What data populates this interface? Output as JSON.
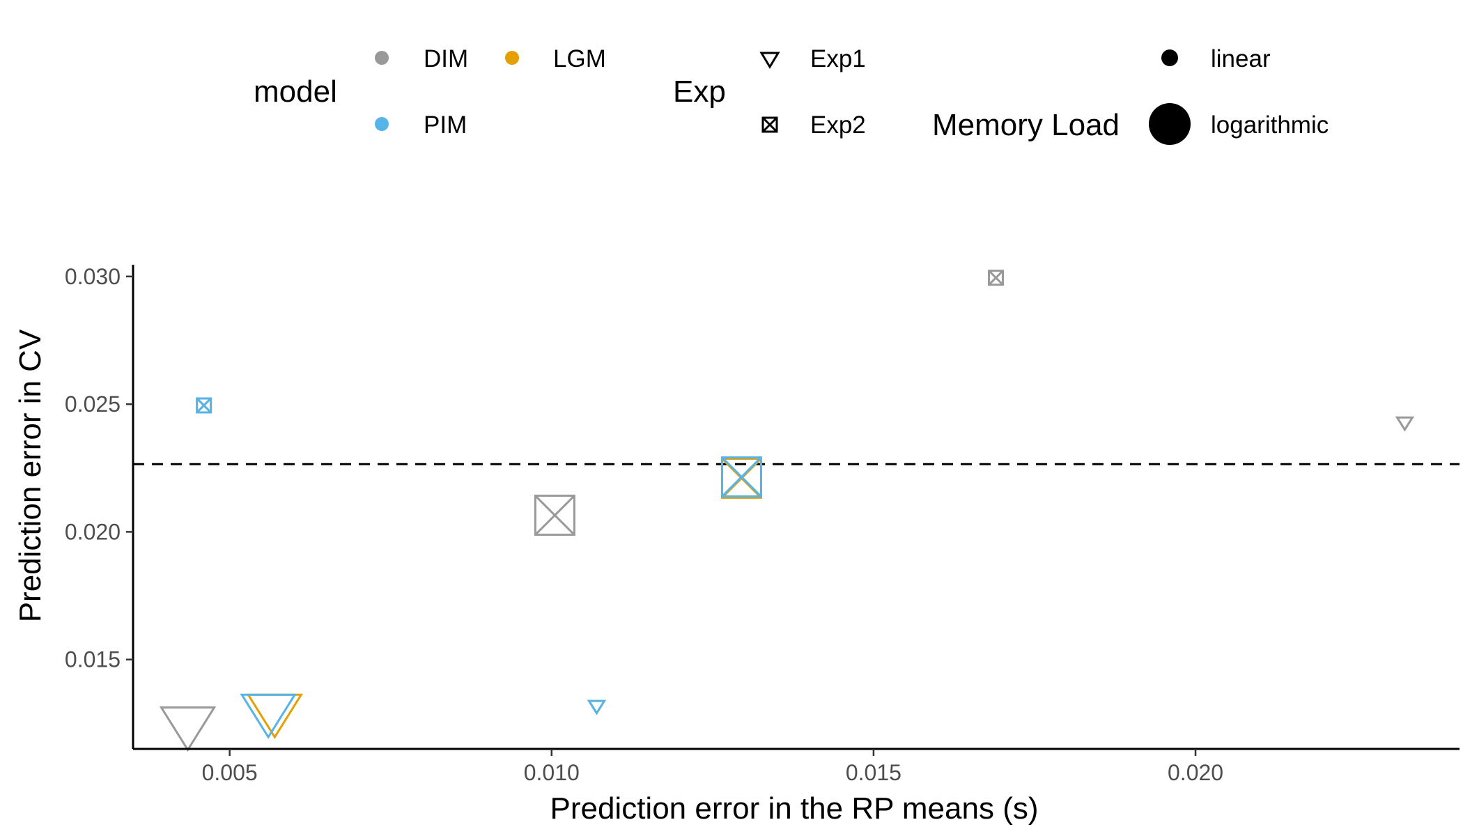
{
  "chart_data": {
    "type": "scatter",
    "title": "",
    "xlabel": "Prediction error in the RP means (s)",
    "ylabel": "Prediction error in CV",
    "xlim": [
      0.0035,
      0.0241
    ],
    "ylim": [
      0.0115,
      0.03046
    ],
    "x_ticks": [
      0.005,
      0.01,
      0.015,
      0.02
    ],
    "x_tick_labels": [
      "0.005",
      "0.010",
      "0.015",
      "0.020"
    ],
    "y_ticks": [
      0.015,
      0.02,
      0.025,
      0.03
    ],
    "y_tick_labels": [
      "0.015",
      "0.020",
      "0.025",
      "0.030"
    ],
    "grid": false,
    "reference_line": {
      "y": 0.02265,
      "style": "dashed"
    },
    "legend_position": "top",
    "legends": {
      "model": {
        "title": "model",
        "entries": [
          {
            "label": "DIM",
            "color": "#999999"
          },
          {
            "label": "LGM",
            "color": "#E69F00"
          },
          {
            "label": "PIM",
            "color": "#56B4E9"
          }
        ]
      },
      "exp": {
        "title": "Exp",
        "entries": [
          {
            "label": "Exp1",
            "shape": "triangle-down-open"
          },
          {
            "label": "Exp2",
            "shape": "square-x-open"
          }
        ]
      },
      "memory_load": {
        "title": "Memory Load",
        "entries": [
          {
            "label": "linear",
            "size": "small"
          },
          {
            "label": "logarithmic",
            "size": "large"
          }
        ]
      }
    },
    "points": [
      {
        "model": "DIM",
        "exp": "Exp1",
        "load": "logarithmic",
        "x": 0.00435,
        "y": 0.0125
      },
      {
        "model": "LGM",
        "exp": "Exp1",
        "load": "logarithmic",
        "x": 0.0057,
        "y": 0.013
      },
      {
        "model": "PIM",
        "exp": "Exp1",
        "load": "logarithmic",
        "x": 0.0056,
        "y": 0.013
      },
      {
        "model": "DIM",
        "exp": "Exp2",
        "load": "logarithmic",
        "x": 0.01005,
        "y": 0.02065
      },
      {
        "model": "LGM",
        "exp": "Exp2",
        "load": "logarithmic",
        "x": 0.01295,
        "y": 0.0221
      },
      {
        "model": "PIM",
        "exp": "Exp2",
        "load": "logarithmic",
        "x": 0.01295,
        "y": 0.02215
      },
      {
        "model": "LGM",
        "exp": "Exp2",
        "load": "linear",
        "x": 0.0046,
        "y": 0.02495
      },
      {
        "model": "PIM",
        "exp": "Exp2",
        "load": "linear",
        "x": 0.0046,
        "y": 0.02495
      },
      {
        "model": "LGM",
        "exp": "Exp1",
        "load": "linear",
        "x": 0.0107,
        "y": 0.0132
      },
      {
        "model": "PIM",
        "exp": "Exp1",
        "load": "linear",
        "x": 0.0107,
        "y": 0.0132
      },
      {
        "model": "DIM",
        "exp": "Exp2",
        "load": "linear",
        "x": 0.0169,
        "y": 0.02995
      },
      {
        "model": "DIM",
        "exp": "Exp1",
        "load": "linear",
        "x": 0.02325,
        "y": 0.0243
      }
    ]
  }
}
